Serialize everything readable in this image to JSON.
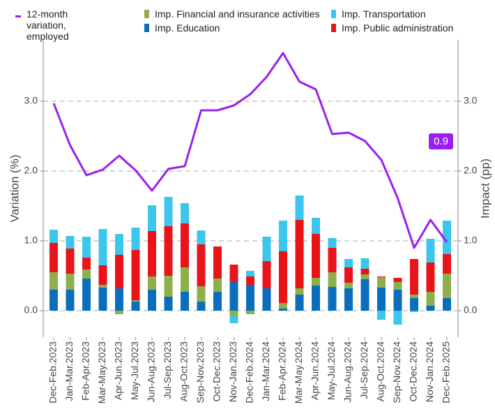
{
  "chart_data": {
    "type": "bar",
    "y_label": "Variation (%)",
    "y2_label": "Impact (pp)",
    "annotation": "0.9",
    "categories": [
      "Dec-Feb.2023",
      "Jan-Mar.2023",
      "Feb-Apr.2023",
      "Mar-May.2023",
      "Apr-Jun.2023",
      "May-Jul.2023",
      "Jun-Aug.2023",
      "Jul-Sep.2023",
      "Aug-Oct.2023",
      "Sep-Nov.2023",
      "Oct-Dec.2023",
      "Nov-Jan.2023",
      "Dec-Feb.2024",
      "Jan-Mar.2024",
      "Feb-Apr.2024",
      "Mar-May.2024",
      "Apr-Jun.2024",
      "May-Jul.2024",
      "Jun-Aug.2024",
      "Jul-Sep.2024",
      "Aug-Oct.2024",
      "Sep-Nov.2024",
      "Oct-Dec.2024",
      "Nov-Jan.2024",
      "Dec-Feb.2025"
    ],
    "series": [
      {
        "name": "12-month variation, employed",
        "type": "line",
        "color": "#9b1ff0",
        "values": [
          2.97,
          2.37,
          1.94,
          2.02,
          2.22,
          2.01,
          1.72,
          2.03,
          2.07,
          2.87,
          2.87,
          2.94,
          3.1,
          3.35,
          3.69,
          3.28,
          3.17,
          2.53,
          2.55,
          2.43,
          2.16,
          1.61,
          0.9,
          1.3,
          0.98
        ]
      },
      {
        "name": "Imp. Education",
        "axis": "y2",
        "color": "#0a6ebd",
        "values": [
          0.3,
          0.3,
          0.46,
          0.33,
          0.32,
          0.13,
          0.3,
          0.2,
          0.27,
          0.13,
          0.27,
          0.41,
          0.37,
          0.32,
          0.03,
          0.23,
          0.36,
          0.34,
          0.32,
          0.45,
          0.33,
          0.3,
          0.18,
          0.07,
          0.18
        ]
      },
      {
        "name": "Imp. Financial and insurance activities",
        "axis": "y2",
        "color": "#8db04a",
        "values": [
          0.25,
          0.23,
          0.13,
          0.04,
          -0.05,
          0.02,
          0.19,
          0.3,
          0.35,
          0.22,
          0.19,
          -0.08,
          -0.05,
          0.0,
          0.08,
          0.09,
          0.11,
          0.21,
          0.08,
          0.07,
          0.15,
          0.11,
          0.05,
          0.2,
          0.35
        ]
      },
      {
        "name": "Imp. Public administration",
        "axis": "y2",
        "color": "#e8141a",
        "values": [
          0.42,
          0.36,
          0.17,
          0.28,
          0.48,
          0.72,
          0.65,
          0.71,
          0.63,
          0.6,
          0.46,
          0.25,
          0.12,
          0.39,
          0.74,
          0.98,
          0.63,
          0.35,
          0.22,
          0.08,
          0.01,
          0.06,
          0.51,
          0.42,
          0.28
        ]
      },
      {
        "name": "Imp. Transportation",
        "axis": "y2",
        "color": "#3cc6ee",
        "values": [
          0.19,
          0.18,
          0.3,
          0.52,
          0.3,
          0.32,
          0.37,
          0.42,
          0.29,
          0.2,
          0.0,
          -0.1,
          0.08,
          0.35,
          0.44,
          0.35,
          0.23,
          0.14,
          0.12,
          0.15,
          -0.13,
          -0.2,
          -0.02,
          0.34,
          0.48
        ]
      }
    ],
    "ylim": [
      -0.38,
      3.88
    ],
    "yticks": [
      {
        "value": 0,
        "label": "0.0"
      },
      {
        "value": 1,
        "label": "1.0"
      },
      {
        "value": 2,
        "label": "2.0"
      },
      {
        "value": 3,
        "label": "3.0"
      }
    ],
    "y2lim": [
      -0.38,
      3.88
    ],
    "y2ticks": [
      {
        "value": 0,
        "label": "0.0"
      },
      {
        "value": 1,
        "label": "1.0"
      },
      {
        "value": 2,
        "label": "2.0"
      },
      {
        "value": 3,
        "label": "3.0"
      }
    ],
    "grid": true
  }
}
